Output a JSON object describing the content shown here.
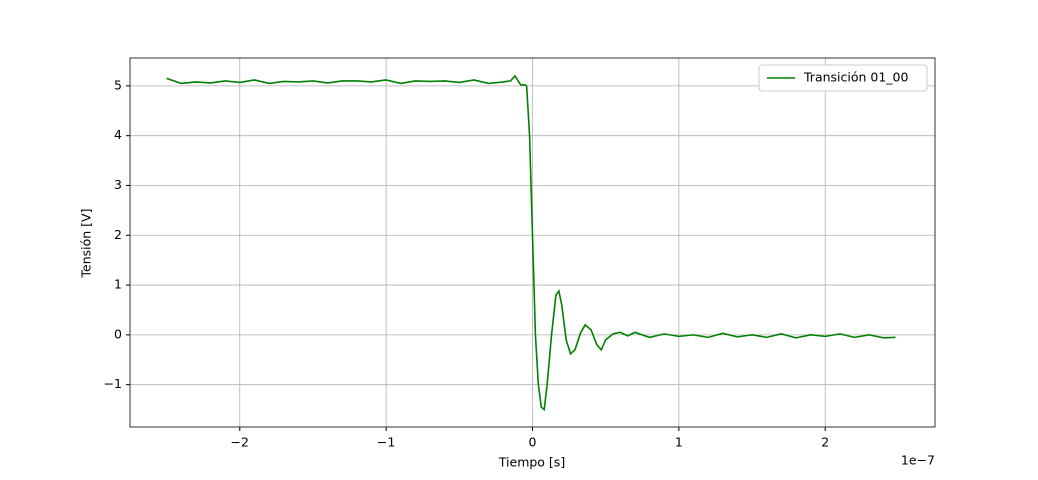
{
  "chart_data": {
    "type": "line",
    "x_label": "Tiempo [s]",
    "y_label": "Tensión [V]",
    "x_offset_label": "1e−7",
    "x": [
      -2.5,
      -2.4,
      -2.3,
      -2.2,
      -2.1,
      -2.0,
      -1.9,
      -1.8,
      -1.7,
      -1.6,
      -1.5,
      -1.4,
      -1.3,
      -1.2,
      -1.1,
      -1.0,
      -0.9,
      -0.8,
      -0.7,
      -0.6,
      -0.5,
      -0.4,
      -0.3,
      -0.2,
      -0.15,
      -0.12,
      -0.08,
      -0.05,
      -0.04,
      -0.02,
      0,
      0.02,
      0.04,
      0.06,
      0.08,
      0.1,
      0.13,
      0.16,
      0.18,
      0.2,
      0.23,
      0.26,
      0.29,
      0.33,
      0.36,
      0.4,
      0.44,
      0.47,
      0.5,
      0.55,
      0.6,
      0.65,
      0.7,
      0.8,
      0.9,
      1.0,
      1.1,
      1.2,
      1.3,
      1.4,
      1.5,
      1.6,
      1.7,
      1.8,
      1.9,
      2.0,
      2.1,
      2.2,
      2.3,
      2.4,
      2.48
    ],
    "series": [
      {
        "name": "Transición 01_00",
        "color": "#008000",
        "values": [
          5.15,
          5.05,
          5.08,
          5.06,
          5.1,
          5.07,
          5.12,
          5.05,
          5.09,
          5.08,
          5.1,
          5.06,
          5.1,
          5.1,
          5.08,
          5.12,
          5.05,
          5.1,
          5.09,
          5.1,
          5.07,
          5.12,
          5.05,
          5.08,
          5.1,
          5.2,
          5.02,
          5.02,
          5.0,
          4.0,
          2.0,
          0,
          -1.0,
          -1.45,
          -1.5,
          -1.0,
          0,
          0.8,
          0.88,
          0.6,
          -0.1,
          -0.38,
          -0.3,
          0.05,
          0.2,
          0.1,
          -0.2,
          -0.3,
          -0.1,
          0.02,
          0.05,
          -0.02,
          0.05,
          -0.05,
          0.02,
          -0.03,
          0,
          -0.05,
          0.03,
          -0.04,
          0,
          -0.05,
          0.02,
          -0.06,
          0,
          -0.03,
          0.02,
          -0.05,
          0,
          -0.06,
          -0.05
        ]
      }
    ],
    "xlim": [
      -2.75,
      2.75
    ],
    "xticks": [
      {
        "value": -2,
        "label": "−2"
      },
      {
        "value": -1,
        "label": "−1"
      },
      0,
      1,
      2
    ],
    "ylim": [
      -1.85,
      5.56
    ],
    "yticks": [
      {
        "value": -1,
        "label": "−1"
      },
      0,
      1,
      2,
      3,
      4,
      5
    ],
    "grid": true,
    "legend": "upper right"
  }
}
